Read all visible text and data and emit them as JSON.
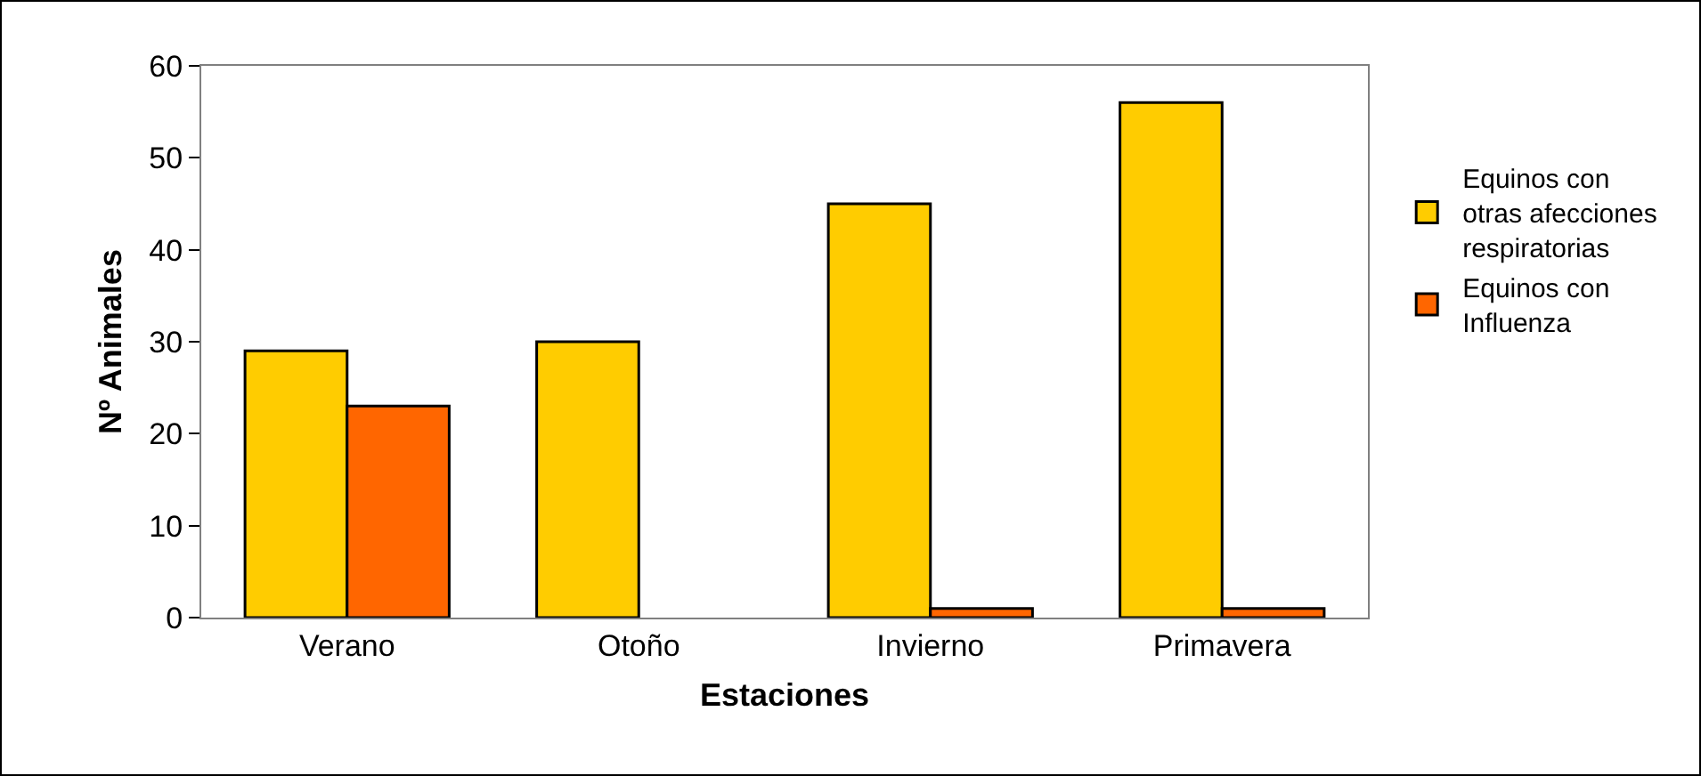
{
  "chart_data": {
    "type": "bar",
    "xlabel": "Estaciones",
    "ylabel": "Nº Animales",
    "categories": [
      "Verano",
      "Otoño",
      "Invierno",
      "Primavera"
    ],
    "series": [
      {
        "name": "Equinos con otras afecciones respiratorias",
        "color": "#ffcc00",
        "values": [
          29,
          30,
          45,
          56
        ]
      },
      {
        "name": "Equinos con Influenza",
        "color": "#ff6600",
        "values": [
          23,
          null,
          1,
          1
        ]
      }
    ],
    "ylim": [
      0,
      60
    ],
    "yticks": [
      0,
      10,
      20,
      30,
      40,
      50,
      60
    ],
    "grid": false,
    "legend": "right"
  }
}
